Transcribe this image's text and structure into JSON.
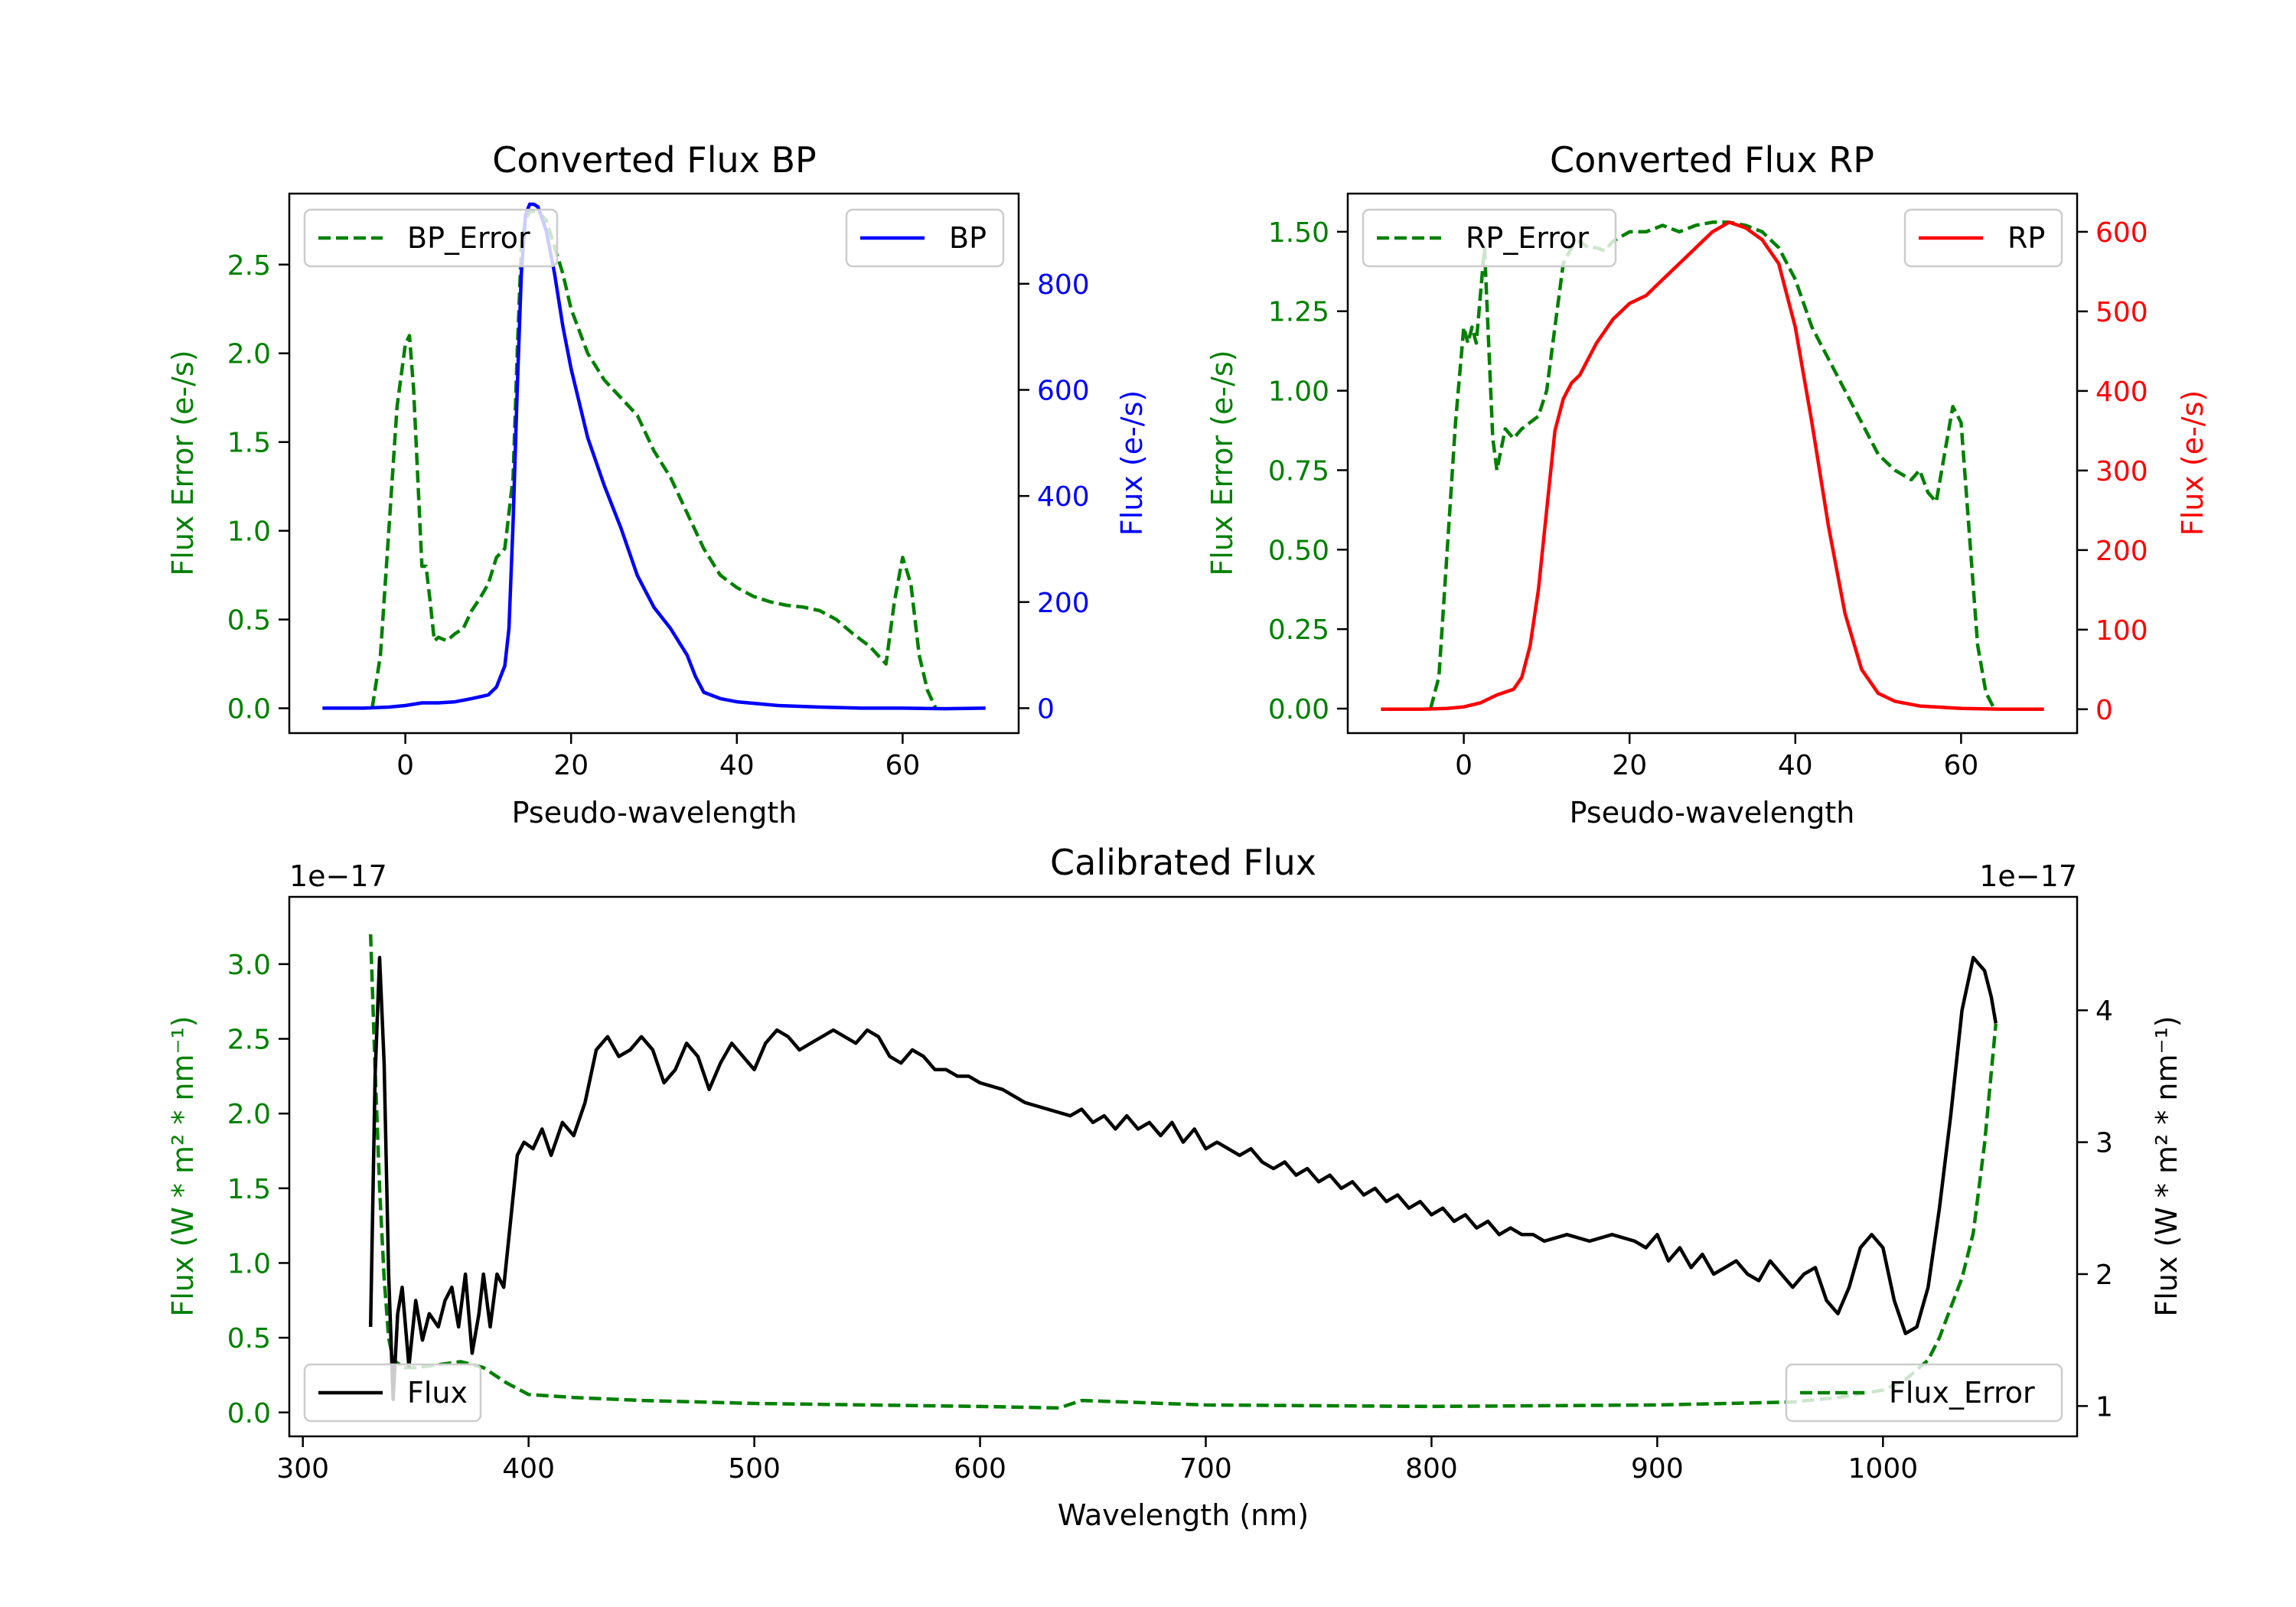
{
  "colors": {
    "bp": "#0000ff",
    "rp": "#ff0000",
    "error": "#008000",
    "flux": "#000000"
  },
  "chart_data": [
    {
      "id": "bp",
      "type": "line",
      "title": "Converted Flux BP",
      "xlabel": "Pseudo-wavelength",
      "ylabel_left": "Flux Error (e-/s)",
      "ylabel_right": "Flux (e-/s)",
      "xlim": [
        -14,
        74
      ],
      "ylim_left": [
        -0.14,
        2.9
      ],
      "ylim_right": [
        -47,
        970
      ],
      "xticks": [
        "0",
        "20",
        "40",
        "60"
      ],
      "yticks_left": [
        "0.0",
        "0.5",
        "1.0",
        "1.5",
        "2.0",
        "2.5"
      ],
      "yticks_right": [
        "0",
        "200",
        "400",
        "600",
        "800"
      ],
      "legend_left": "BP_Error",
      "legend_right": "BP",
      "series": [
        {
          "name": "BP_Error",
          "axis": "left",
          "style": "dashed",
          "color": "#008000",
          "x": [
            -4,
            -3,
            -2,
            -1,
            0,
            0.5,
            1,
            2,
            2.5,
            3,
            3.5,
            4,
            5,
            6,
            7,
            8,
            9,
            10,
            11,
            12,
            13,
            13.5,
            14,
            14.5,
            15,
            16,
            17,
            18,
            19,
            20,
            22,
            24,
            26,
            28,
            30,
            32,
            34,
            36,
            38,
            40,
            42,
            44,
            46,
            48,
            50,
            52,
            54,
            56,
            57,
            58,
            59,
            60,
            61,
            62,
            63,
            64
          ],
          "y": [
            0.0,
            0.3,
            1.0,
            1.7,
            2.05,
            2.1,
            1.8,
            0.8,
            0.8,
            0.6,
            0.38,
            0.4,
            0.38,
            0.42,
            0.45,
            0.55,
            0.62,
            0.7,
            0.85,
            0.9,
            1.3,
            2.0,
            2.6,
            2.75,
            2.8,
            2.8,
            2.75,
            2.6,
            2.45,
            2.25,
            2.0,
            1.85,
            1.75,
            1.65,
            1.45,
            1.3,
            1.1,
            0.9,
            0.75,
            0.68,
            0.63,
            0.6,
            0.58,
            0.57,
            0.55,
            0.5,
            0.42,
            0.35,
            0.3,
            0.25,
            0.6,
            0.85,
            0.7,
            0.3,
            0.1,
            0.0
          ]
        },
        {
          "name": "BP",
          "axis": "right",
          "style": "solid",
          "color": "#0000ff",
          "x": [
            -10,
            -5,
            -2,
            0,
            2,
            4,
            6,
            8,
            10,
            11,
            12,
            12.5,
            13,
            13.5,
            14,
            14.5,
            15,
            15.5,
            16,
            17,
            18,
            19,
            20,
            22,
            24,
            26,
            28,
            30,
            32,
            34,
            35,
            36,
            38,
            40,
            45,
            50,
            55,
            60,
            65,
            70
          ],
          "y": [
            0,
            0,
            2,
            5,
            10,
            10,
            12,
            18,
            25,
            40,
            80,
            150,
            350,
            600,
            820,
            930,
            950,
            950,
            945,
            900,
            820,
            720,
            640,
            510,
            420,
            340,
            250,
            190,
            150,
            100,
            60,
            30,
            18,
            12,
            5,
            2,
            0,
            0,
            -1,
            0
          ]
        }
      ]
    },
    {
      "id": "rp",
      "type": "line",
      "title": "Converted Flux RP",
      "xlabel": "Pseudo-wavelength",
      "ylabel_left": "Flux Error (e-/s)",
      "ylabel_right": "Flux (e-/s)",
      "xlim": [
        -14,
        74
      ],
      "ylim_left": [
        -0.077,
        1.62
      ],
      "ylim_right": [
        -30,
        648
      ],
      "xticks": [
        "0",
        "20",
        "40",
        "60"
      ],
      "yticks_left": [
        "0.00",
        "0.25",
        "0.50",
        "0.75",
        "1.00",
        "1.25",
        "1.50"
      ],
      "yticks_right": [
        "0",
        "100",
        "200",
        "300",
        "400",
        "500",
        "600"
      ],
      "legend_left": "RP_Error",
      "legend_right": "RP",
      "series": [
        {
          "name": "RP_Error",
          "axis": "left",
          "style": "dashed",
          "color": "#008000",
          "x": [
            -4,
            -3,
            -2,
            -1,
            0,
            0.5,
            1,
            1.5,
            2,
            2.5,
            3,
            3.5,
            4,
            5,
            6,
            7,
            8,
            9,
            10,
            11,
            12,
            13,
            14,
            15,
            16,
            17,
            18,
            20,
            22,
            24,
            26,
            28,
            30,
            32,
            34,
            36,
            38,
            40,
            42,
            44,
            46,
            48,
            50,
            52,
            54,
            55,
            56,
            57,
            58,
            59,
            60,
            61,
            62,
            63,
            64
          ],
          "y": [
            0.0,
            0.1,
            0.5,
            0.9,
            1.2,
            1.15,
            1.2,
            1.15,
            1.3,
            1.45,
            1.15,
            0.85,
            0.75,
            0.88,
            0.85,
            0.88,
            0.9,
            0.92,
            1.0,
            1.2,
            1.4,
            1.45,
            1.47,
            1.45,
            1.45,
            1.44,
            1.47,
            1.5,
            1.5,
            1.52,
            1.5,
            1.52,
            1.53,
            1.53,
            1.52,
            1.5,
            1.45,
            1.35,
            1.2,
            1.1,
            1.0,
            0.9,
            0.8,
            0.75,
            0.72,
            0.75,
            0.68,
            0.65,
            0.8,
            0.95,
            0.9,
            0.55,
            0.2,
            0.05,
            0.0
          ]
        },
        {
          "name": "RP",
          "axis": "right",
          "style": "solid",
          "color": "#ff0000",
          "x": [
            -10,
            -5,
            -2,
            0,
            2,
            4,
            6,
            7,
            8,
            9,
            10,
            11,
            12,
            13,
            14,
            16,
            18,
            20,
            22,
            24,
            26,
            28,
            30,
            32,
            34,
            36,
            38,
            40,
            42,
            44,
            46,
            48,
            50,
            52,
            55,
            60,
            65,
            70
          ],
          "y": [
            0,
            0,
            1,
            3,
            8,
            18,
            25,
            40,
            80,
            150,
            250,
            350,
            390,
            410,
            420,
            460,
            490,
            510,
            520,
            540,
            560,
            580,
            600,
            612,
            605,
            590,
            560,
            480,
            360,
            230,
            120,
            50,
            20,
            10,
            4,
            1,
            0,
            0
          ]
        }
      ]
    },
    {
      "id": "calibrated",
      "type": "line",
      "title": "Calibrated Flux",
      "xlabel": "Wavelength (nm)",
      "ylabel_left": "Flux (W * m² * nm⁻¹)",
      "ylabel_right": "Flux (W * m² * nm⁻¹)",
      "offset_left": "1e−17",
      "offset_right": "1e−17",
      "xlim": [
        294,
        1086
      ],
      "ylim_left": [
        -0.16,
        3.45
      ],
      "ylim_right": [
        0.77,
        4.86
      ],
      "xticks": [
        "300",
        "400",
        "500",
        "600",
        "700",
        "800",
        "900",
        "1000"
      ],
      "yticks_left": [
        "0.0",
        "0.5",
        "1.0",
        "1.5",
        "2.0",
        "2.5",
        "3.0"
      ],
      "yticks_right": [
        "1",
        "2",
        "3",
        "4"
      ],
      "legend_left": "Flux",
      "legend_right": "Flux_Error",
      "series": [
        {
          "name": "Flux_Error",
          "axis": "left",
          "style": "dashed",
          "color": "#008000",
          "x": [
            330,
            332,
            334,
            336,
            338,
            340,
            345,
            350,
            360,
            370,
            380,
            390,
            400,
            420,
            450,
            500,
            550,
            600,
            635,
            645,
            700,
            800,
            900,
            960,
            980,
            1000,
            1010,
            1020,
            1025,
            1030,
            1035,
            1040,
            1045,
            1050
          ],
          "y": [
            3.2,
            2.3,
            1.5,
            0.9,
            0.5,
            0.35,
            0.3,
            0.3,
            0.32,
            0.34,
            0.3,
            0.2,
            0.12,
            0.1,
            0.08,
            0.06,
            0.05,
            0.04,
            0.03,
            0.08,
            0.05,
            0.04,
            0.05,
            0.07,
            0.1,
            0.15,
            0.22,
            0.35,
            0.5,
            0.7,
            0.9,
            1.2,
            1.8,
            2.6
          ]
        },
        {
          "name": "Flux",
          "axis": "right",
          "style": "solid",
          "color": "#000000",
          "x": [
            330,
            332,
            334,
            336,
            338,
            340,
            342,
            344,
            347,
            350,
            353,
            356,
            360,
            363,
            366,
            369,
            372,
            375,
            378,
            380,
            383,
            386,
            389,
            392,
            395,
            398,
            402,
            406,
            410,
            415,
            420,
            425,
            430,
            435,
            440,
            445,
            450,
            455,
            460,
            465,
            470,
            475,
            480,
            485,
            490,
            495,
            500,
            505,
            510,
            515,
            520,
            525,
            530,
            535,
            540,
            545,
            550,
            555,
            560,
            565,
            570,
            575,
            580,
            585,
            590,
            595,
            600,
            610,
            620,
            630,
            640,
            645,
            650,
            655,
            660,
            665,
            670,
            675,
            680,
            685,
            690,
            695,
            700,
            705,
            710,
            715,
            720,
            725,
            730,
            735,
            740,
            745,
            750,
            755,
            760,
            765,
            770,
            775,
            780,
            785,
            790,
            795,
            800,
            805,
            810,
            815,
            820,
            825,
            830,
            835,
            840,
            845,
            850,
            860,
            870,
            880,
            890,
            895,
            900,
            905,
            910,
            915,
            920,
            925,
            930,
            935,
            940,
            945,
            950,
            955,
            960,
            965,
            970,
            975,
            980,
            985,
            990,
            995,
            1000,
            1005,
            1010,
            1015,
            1020,
            1025,
            1030,
            1035,
            1040,
            1045,
            1048,
            1050
          ],
          "y": [
            1.6,
            3.5,
            4.4,
            3.6,
            2.0,
            1.05,
            1.7,
            1.9,
            1.3,
            1.8,
            1.5,
            1.7,
            1.6,
            1.8,
            1.9,
            1.6,
            2.0,
            1.4,
            1.7,
            2.0,
            1.6,
            2.0,
            1.9,
            2.4,
            2.9,
            3.0,
            2.95,
            3.1,
            2.9,
            3.15,
            3.05,
            3.3,
            3.7,
            3.8,
            3.65,
            3.7,
            3.8,
            3.7,
            3.45,
            3.55,
            3.75,
            3.65,
            3.4,
            3.6,
            3.75,
            3.65,
            3.55,
            3.75,
            3.85,
            3.8,
            3.7,
            3.75,
            3.8,
            3.85,
            3.8,
            3.75,
            3.85,
            3.8,
            3.65,
            3.6,
            3.7,
            3.65,
            3.55,
            3.55,
            3.5,
            3.5,
            3.45,
            3.4,
            3.3,
            3.25,
            3.2,
            3.25,
            3.15,
            3.2,
            3.1,
            3.2,
            3.1,
            3.15,
            3.05,
            3.15,
            3.0,
            3.1,
            2.95,
            3.0,
            2.95,
            2.9,
            2.95,
            2.85,
            2.8,
            2.85,
            2.75,
            2.8,
            2.7,
            2.75,
            2.65,
            2.7,
            2.6,
            2.65,
            2.55,
            2.6,
            2.5,
            2.55,
            2.45,
            2.5,
            2.4,
            2.45,
            2.35,
            2.4,
            2.3,
            2.35,
            2.3,
            2.3,
            2.25,
            2.3,
            2.25,
            2.3,
            2.25,
            2.2,
            2.3,
            2.1,
            2.2,
            2.05,
            2.15,
            2.0,
            2.05,
            2.1,
            2.0,
            1.95,
            2.1,
            2.0,
            1.9,
            2.0,
            2.05,
            1.8,
            1.7,
            1.9,
            2.2,
            2.3,
            2.2,
            1.8,
            1.55,
            1.6,
            1.9,
            2.5,
            3.2,
            4.0,
            4.4,
            4.3,
            4.1,
            3.9
          ]
        }
      ]
    }
  ]
}
